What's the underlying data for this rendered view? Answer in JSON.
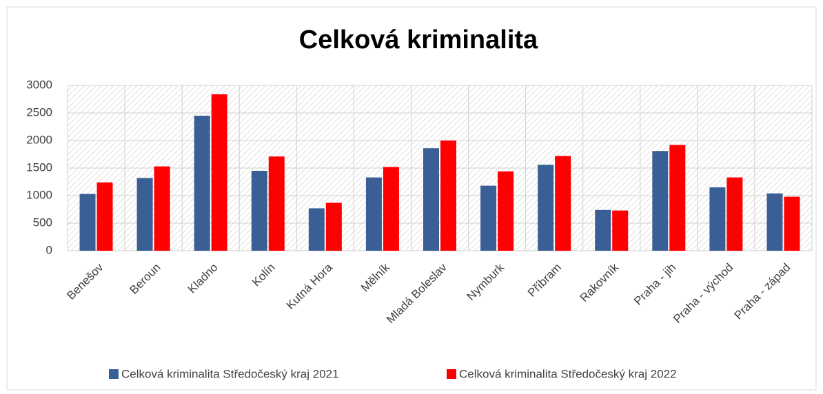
{
  "chart_data": {
    "type": "bar",
    "title": "Celková kriminalita",
    "categories": [
      "Benešov",
      "Beroun",
      "Kladno",
      "Kolín",
      "Kutná Hora",
      "Mělník",
      "Mladá Boleslav",
      "Nymburk",
      "Příbram",
      "Rakovník",
      "Praha - jih",
      "Praha - východ",
      "Praha - západ"
    ],
    "series": [
      {
        "name": "Celková kriminalita Středočeský kraj 2021",
        "color": "#3a5f94",
        "values": [
          1030,
          1320,
          2450,
          1450,
          770,
          1330,
          1860,
          1180,
          1560,
          740,
          1810,
          1150,
          1040
        ]
      },
      {
        "name": "Celková kriminalita Středočeský kraj 2022",
        "color": "#ff0000",
        "values": [
          1240,
          1530,
          2840,
          1710,
          870,
          1520,
          2000,
          1440,
          1720,
          730,
          1920,
          1330,
          980
        ]
      }
    ],
    "ylim": [
      0,
      3000
    ],
    "yticks": [
      0,
      500,
      1000,
      1500,
      2000,
      2500,
      3000
    ],
    "grid": true,
    "legend": "bottom"
  }
}
